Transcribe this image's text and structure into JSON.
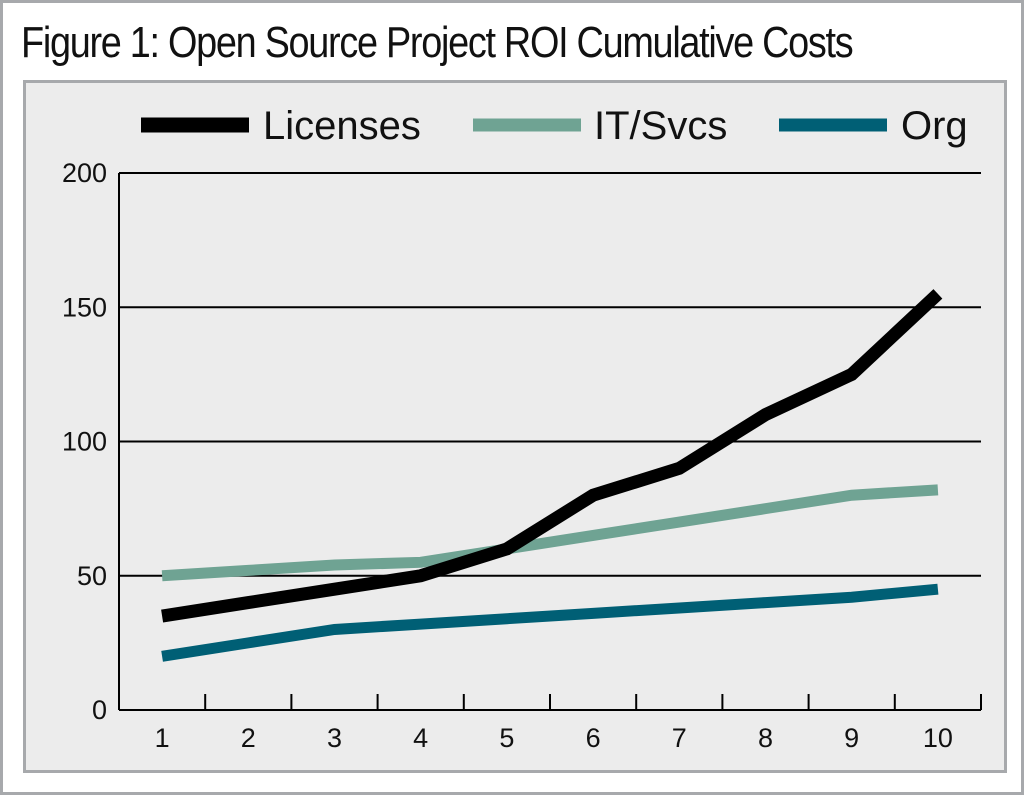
{
  "title": "Figure 1: Open Source Project ROI Cumulative Costs",
  "chart_data": {
    "type": "line",
    "x": [
      1,
      2,
      3,
      4,
      5,
      6,
      7,
      8,
      9,
      10
    ],
    "series": [
      {
        "name": "Licenses",
        "color": "#000000",
        "values": [
          35,
          40,
          45,
          50,
          60,
          80,
          90,
          110,
          125,
          155
        ]
      },
      {
        "name": "IT/Svcs",
        "color": "#6fa393",
        "values": [
          50,
          52,
          54,
          55,
          60,
          65,
          70,
          75,
          80,
          82
        ]
      },
      {
        "name": "Org",
        "color": "#005f75",
        "values": [
          20,
          25,
          30,
          32,
          34,
          36,
          38,
          40,
          42,
          45
        ]
      }
    ],
    "yticks": [
      0,
      50,
      100,
      150,
      200
    ],
    "xticks": [
      1,
      2,
      3,
      4,
      5,
      6,
      7,
      8,
      9,
      10
    ],
    "ylim": [
      0,
      200
    ],
    "xlabel": "",
    "ylabel": "",
    "grid": "horizontal",
    "legend": "top"
  }
}
